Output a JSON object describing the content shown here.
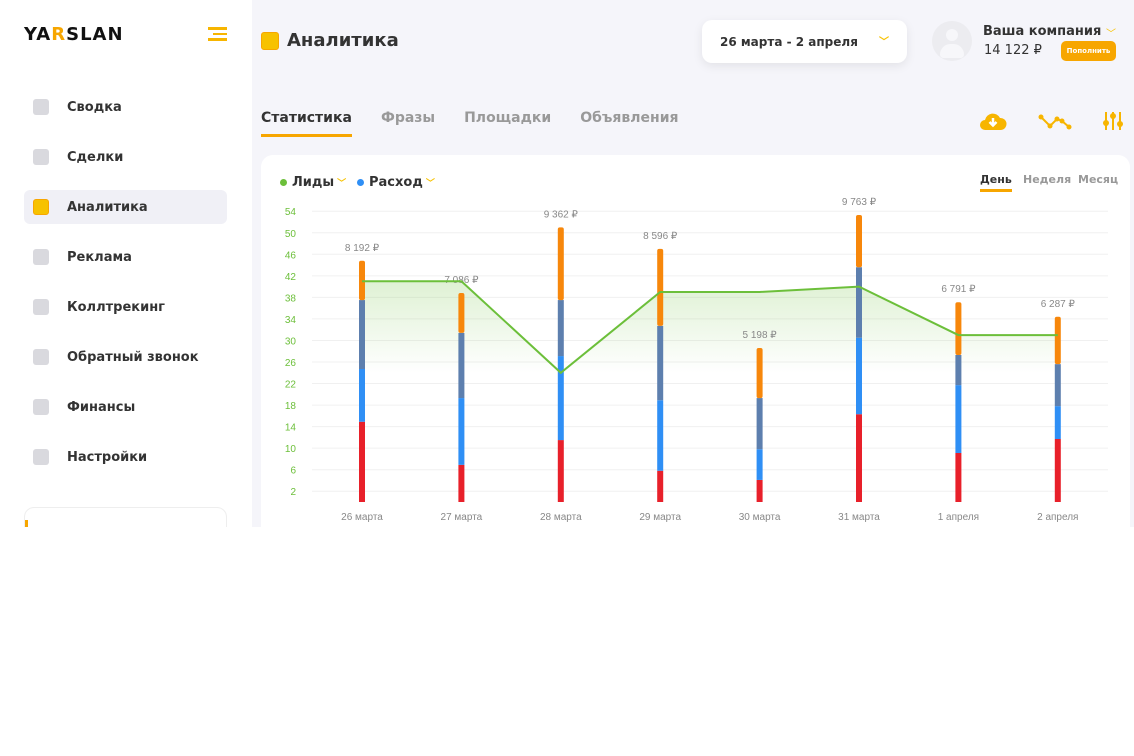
{
  "logo": {
    "text_before": "YA",
    "text_k": "R",
    "text_after": "SLAN"
  },
  "sidebar": {
    "items": [
      {
        "label": "Сводка",
        "icon": "grid-icon"
      },
      {
        "label": "Сделки",
        "icon": "handshake-icon"
      },
      {
        "label": "Аналитика",
        "icon": "analytics-icon",
        "active": true
      },
      {
        "label": "Реклама",
        "icon": "megaphone-icon"
      },
      {
        "label": "Коллтрекинг",
        "icon": "phone-icon"
      },
      {
        "label": "Обратный звонок",
        "icon": "chat-icon"
      },
      {
        "label": "Финансы",
        "icon": "wallet-icon"
      },
      {
        "label": "Настройки",
        "icon": "gear-icon"
      }
    ]
  },
  "header": {
    "title": "Аналитика",
    "date_range": "26 марта - 2 апреля",
    "company": "Ваша компания",
    "balance": "14 122 ₽",
    "topup_label": "Пополнить"
  },
  "tabs": [
    "Статистика",
    "Фразы",
    "Площадки",
    "Объявления"
  ],
  "periods": [
    "День",
    "Неделя",
    "Месяц"
  ],
  "colors": {
    "accent": "#f7a600",
    "leads": "#6cbf3a",
    "spend": "#2f8ff5"
  },
  "chart_data": {
    "type": "bar",
    "legend": [
      {
        "name": "Лиды",
        "color": "#6cbf3a"
      },
      {
        "name": "Расход",
        "color": "#2f8ff5"
      }
    ],
    "categories": [
      "26 марта",
      "27 марта",
      "28 марта",
      "29 марта",
      "30 марта",
      "31 марта",
      "1 апреля",
      "2 апреля"
    ],
    "ylim": [
      0,
      56
    ],
    "yticks": [
      2,
      6,
      10,
      14,
      18,
      22,
      26,
      30,
      34,
      38,
      42,
      46,
      50,
      54
    ],
    "stacked_series": [
      {
        "color": "#e8202a",
        "values": [
          14.9,
          6.9,
          11.5,
          5.8,
          4.1,
          16.3,
          9.1,
          11.7
        ]
      },
      {
        "color": "#2f8ff5",
        "values": [
          9.8,
          12.4,
          15.6,
          13.1,
          5.7,
          14.2,
          12.6,
          6.1
        ]
      },
      {
        "color": "#5d7fae",
        "values": [
          12.8,
          12.1,
          10.4,
          13.8,
          9.5,
          13.1,
          5.6,
          7.8
        ]
      },
      {
        "color": "#f7870b",
        "values": [
          7.3,
          7.4,
          13.5,
          14.3,
          9.3,
          9.7,
          9.8,
          8.8
        ]
      }
    ],
    "bar_labels": [
      "8 192 ₽",
      "7 086 ₽",
      "9 362 ₽",
      "8 596 ₽",
      "5 198 ₽",
      "9 763 ₽",
      "6 791 ₽",
      "6 287 ₽"
    ],
    "line": {
      "name": "Лиды",
      "color": "#6cbf3a",
      "values": [
        41,
        41,
        24,
        39,
        39,
        40,
        31,
        31
      ]
    }
  }
}
